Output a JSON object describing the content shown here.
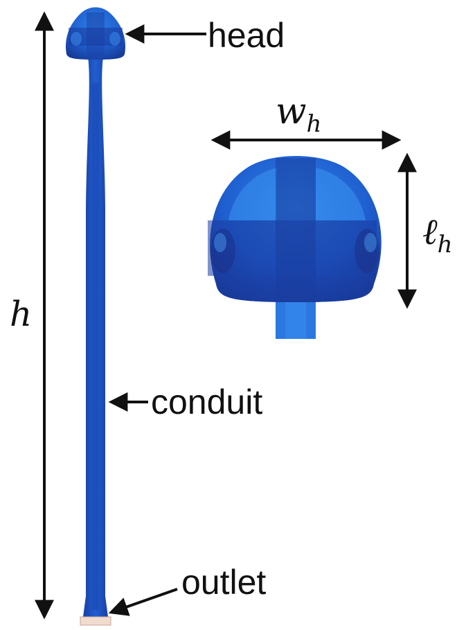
{
  "labels": {
    "head": "head",
    "conduit": "conduit",
    "outlet": "outlet"
  },
  "symbols": {
    "height": "h",
    "head_width": "w",
    "head_width_sub": "h",
    "head_length": "ℓ",
    "head_length_sub": "h"
  },
  "colors": {
    "fluid_dark": "#1a3a9e",
    "fluid_mid": "#1f5fd0",
    "fluid_light": "#3a90ee",
    "arrow": "#111111"
  }
}
